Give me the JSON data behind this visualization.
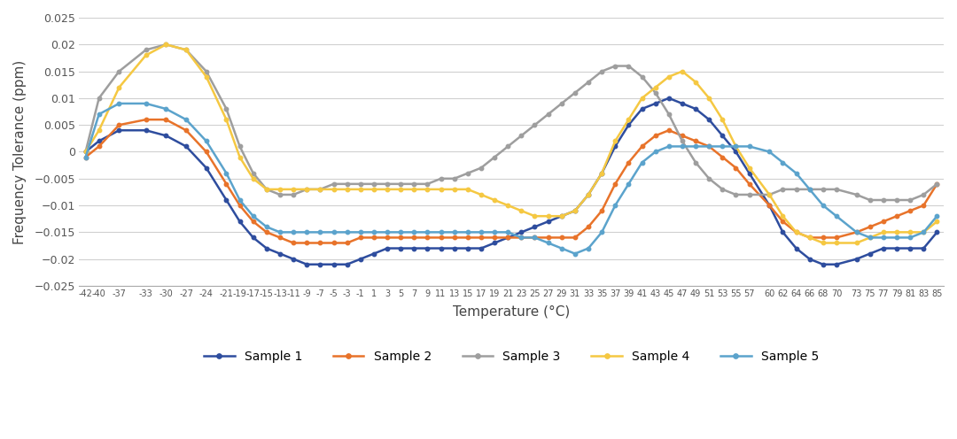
{
  "temperatures": [
    -42,
    -40,
    -37,
    -33,
    -30,
    -27,
    -24,
    -21,
    -19,
    -17,
    -15,
    -13,
    -11,
    -9,
    -7,
    -5,
    -3,
    -1,
    1,
    3,
    5,
    7,
    9,
    11,
    13,
    15,
    17,
    19,
    21,
    23,
    25,
    27,
    29,
    31,
    33,
    35,
    37,
    39,
    41,
    43,
    45,
    47,
    49,
    51,
    53,
    55,
    57,
    60,
    62,
    64,
    66,
    68,
    70,
    73,
    75,
    77,
    79,
    81,
    83,
    85
  ],
  "sample1": [
    0.0,
    0.002,
    0.004,
    0.004,
    0.003,
    0.001,
    -0.003,
    -0.009,
    -0.013,
    -0.016,
    -0.018,
    -0.019,
    -0.02,
    -0.021,
    -0.021,
    -0.021,
    -0.021,
    -0.02,
    -0.019,
    -0.018,
    -0.018,
    -0.018,
    -0.018,
    -0.018,
    -0.018,
    -0.018,
    -0.018,
    -0.017,
    -0.016,
    -0.015,
    -0.014,
    -0.013,
    -0.012,
    -0.011,
    -0.008,
    -0.004,
    0.001,
    0.005,
    0.008,
    0.009,
    0.01,
    0.009,
    0.008,
    0.006,
    0.003,
    0.0,
    -0.004,
    -0.01,
    -0.015,
    -0.018,
    -0.02,
    -0.021,
    -0.021,
    -0.02,
    -0.019,
    -0.018,
    -0.018,
    -0.018,
    -0.018,
    -0.015
  ],
  "sample2": [
    -0.001,
    0.001,
    0.005,
    0.006,
    0.006,
    0.004,
    0.0,
    -0.006,
    -0.01,
    -0.013,
    -0.015,
    -0.016,
    -0.017,
    -0.017,
    -0.017,
    -0.017,
    -0.017,
    -0.016,
    -0.016,
    -0.016,
    -0.016,
    -0.016,
    -0.016,
    -0.016,
    -0.016,
    -0.016,
    -0.016,
    -0.016,
    -0.016,
    -0.016,
    -0.016,
    -0.016,
    -0.016,
    -0.016,
    -0.014,
    -0.011,
    -0.006,
    -0.002,
    0.001,
    0.003,
    0.004,
    0.003,
    0.002,
    0.001,
    -0.001,
    -0.003,
    -0.006,
    -0.01,
    -0.013,
    -0.015,
    -0.016,
    -0.016,
    -0.016,
    -0.015,
    -0.014,
    -0.013,
    -0.012,
    -0.011,
    -0.01,
    -0.006
  ],
  "sample3": [
    0.0,
    0.01,
    0.015,
    0.019,
    0.02,
    0.019,
    0.015,
    0.008,
    0.001,
    -0.004,
    -0.007,
    -0.008,
    -0.008,
    -0.007,
    -0.007,
    -0.006,
    -0.006,
    -0.006,
    -0.006,
    -0.006,
    -0.006,
    -0.006,
    -0.006,
    -0.005,
    -0.005,
    -0.004,
    -0.003,
    -0.001,
    0.001,
    0.003,
    0.005,
    0.007,
    0.009,
    0.011,
    0.013,
    0.015,
    0.016,
    0.016,
    0.014,
    0.011,
    0.007,
    0.002,
    -0.002,
    -0.005,
    -0.007,
    -0.008,
    -0.008,
    -0.008,
    -0.007,
    -0.007,
    -0.007,
    -0.007,
    -0.007,
    -0.008,
    -0.009,
    -0.009,
    -0.009,
    -0.009,
    -0.008,
    -0.006
  ],
  "sample4": [
    0.0,
    0.004,
    0.012,
    0.018,
    0.02,
    0.019,
    0.014,
    0.006,
    -0.001,
    -0.005,
    -0.007,
    -0.007,
    -0.007,
    -0.007,
    -0.007,
    -0.007,
    -0.007,
    -0.007,
    -0.007,
    -0.007,
    -0.007,
    -0.007,
    -0.007,
    -0.007,
    -0.007,
    -0.007,
    -0.008,
    -0.009,
    -0.01,
    -0.011,
    -0.012,
    -0.012,
    -0.012,
    -0.011,
    -0.008,
    -0.004,
    0.002,
    0.006,
    0.01,
    0.012,
    0.014,
    0.015,
    0.013,
    0.01,
    0.006,
    0.001,
    -0.003,
    -0.008,
    -0.012,
    -0.015,
    -0.016,
    -0.017,
    -0.017,
    -0.017,
    -0.016,
    -0.015,
    -0.015,
    -0.015,
    -0.015,
    -0.013
  ],
  "sample5": [
    -0.001,
    0.007,
    0.009,
    0.009,
    0.008,
    0.006,
    0.002,
    -0.004,
    -0.009,
    -0.012,
    -0.014,
    -0.015,
    -0.015,
    -0.015,
    -0.015,
    -0.015,
    -0.015,
    -0.015,
    -0.015,
    -0.015,
    -0.015,
    -0.015,
    -0.015,
    -0.015,
    -0.015,
    -0.015,
    -0.015,
    -0.015,
    -0.015,
    -0.016,
    -0.016,
    -0.017,
    -0.018,
    -0.019,
    -0.018,
    -0.015,
    -0.01,
    -0.006,
    -0.002,
    0.0,
    0.001,
    0.001,
    0.001,
    0.001,
    0.001,
    0.001,
    0.001,
    0.0,
    -0.002,
    -0.004,
    -0.007,
    -0.01,
    -0.012,
    -0.015,
    -0.016,
    -0.016,
    -0.016,
    -0.016,
    -0.015,
    -0.012
  ],
  "colors": {
    "sample1": "#2E4D9E",
    "sample2": "#E8732A",
    "sample3": "#9E9E9E",
    "sample4": "#F5C842",
    "sample5": "#5BA3CC"
  },
  "ylabel": "Frequency Tolerance (ppm)",
  "xlabel": "Temperature (°C)",
  "ylim": [
    -0.025,
    0.025
  ],
  "yticks": [
    -0.025,
    -0.02,
    -0.015,
    -0.01,
    -0.005,
    0,
    0.005,
    0.01,
    0.015,
    0.02,
    0.025
  ],
  "ytick_labels": [
    "−0.025",
    "−0.02",
    "−0.015",
    "−0.01",
    "−0.005",
    "0",
    "0.005",
    "0.01",
    "0.015",
    "0.02",
    "0.025"
  ],
  "legend_labels": [
    "Sample 1",
    "Sample 2",
    "Sample 3",
    "Sample 4",
    "Sample 5"
  ]
}
